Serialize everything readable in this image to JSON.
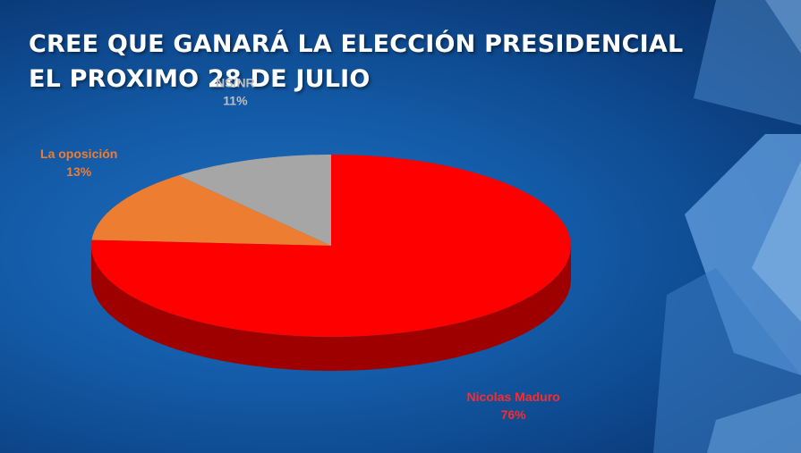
{
  "title_lines": [
    "CREE QUE GANARÁ LA ELECCIÓN PRESIDENCIAL",
    "EL PROXIMO 28 DE JULIO"
  ],
  "colors": {
    "background": "#0f4f96",
    "title_text": "#ffffff"
  },
  "chart_data": {
    "type": "pie",
    "style": "3d",
    "title": "CREE QUE GANARÁ LA ELECCIÓN PRESIDENCIAL EL PROXIMO 28 DE JULIO",
    "slices": [
      {
        "label": "NS/NR",
        "value": 11,
        "display": "11%",
        "color": "#a6a6a6",
        "label_color": "#bfbfbf"
      },
      {
        "label": "La oposición",
        "value": 13,
        "display": "13%",
        "color": "#ed7d31",
        "label_color": "#ed7d31"
      },
      {
        "label": "Nicolas Maduro",
        "value": 76,
        "display": "76%",
        "color": "#ff0000",
        "label_color": "#ff2a2a"
      }
    ]
  }
}
